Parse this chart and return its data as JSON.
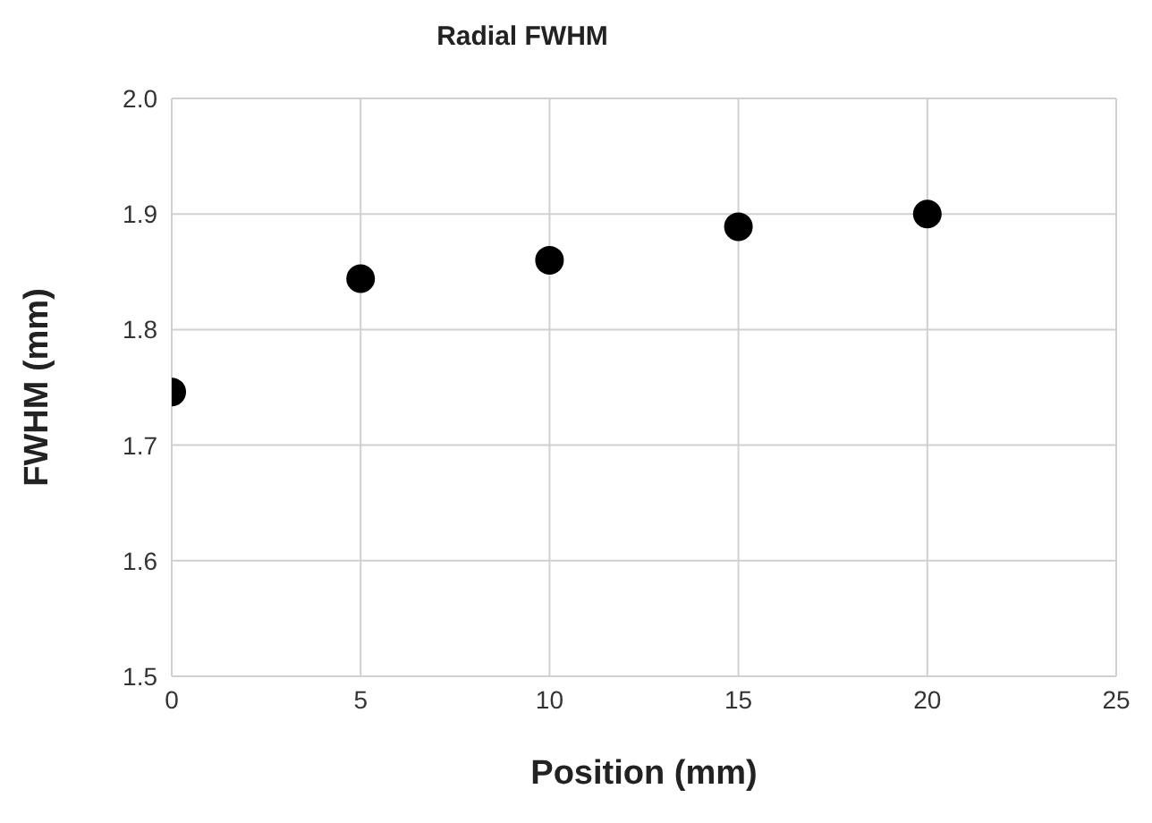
{
  "chart_data": {
    "type": "scatter",
    "title": "Radial FWHM",
    "xlabel": "Position (mm)",
    "ylabel": "FWHM (mm)",
    "x": [
      0,
      5,
      10,
      15,
      20
    ],
    "series": [
      {
        "color": "#000000",
        "values": [
          1.746,
          1.844,
          1.86,
          1.889,
          1.9
        ]
      }
    ],
    "xlim": [
      0,
      25
    ],
    "xticks": [
      0,
      5,
      10,
      15,
      20,
      25
    ],
    "ylim": [
      1.5,
      2.0
    ],
    "yticks": [
      1.5,
      1.6,
      1.7,
      1.8,
      1.9,
      {
        "value": 2.0,
        "label": "2.0"
      }
    ],
    "grid": true,
    "marker": "circle"
  }
}
